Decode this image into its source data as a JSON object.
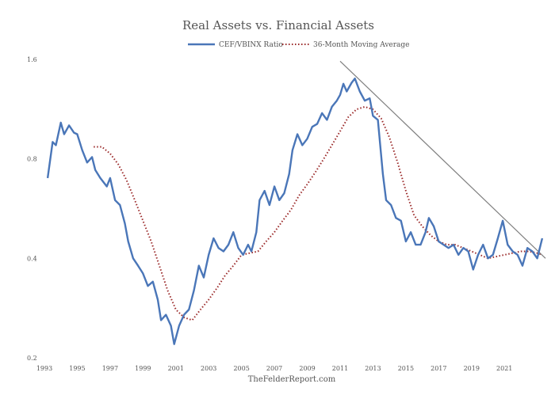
{
  "chart_data": {
    "type": "line",
    "title": "Real Assets vs. Financial Assets",
    "source": "TheFelderReport.com",
    "y_scale": "log",
    "ylim": [
      0.2,
      1.6
    ],
    "xlim": [
      1993,
      2023.5
    ],
    "y_ticks": [
      "0.2",
      "0.4",
      "0.8",
      "1.6"
    ],
    "y_tick_values": [
      0.2,
      0.4,
      0.8,
      1.6
    ],
    "x_ticks": [
      "1993",
      "1995",
      "1997",
      "1999",
      "2001",
      "2003",
      "2005",
      "2007",
      "2009",
      "2011",
      "2013",
      "2015",
      "2017",
      "2019",
      "2021"
    ],
    "x_tick_values": [
      1993,
      1995,
      1997,
      1999,
      2001,
      2003,
      2005,
      2007,
      2009,
      2011,
      2013,
      2015,
      2017,
      2019,
      2021
    ],
    "grid": false,
    "legend_position": "top-center",
    "colors": {
      "ratio": "#4a76b8",
      "moving_average": "#9b2a2a",
      "trendline": "#7f7f7f"
    },
    "series": [
      {
        "name": "CEF/VBINX Ratio",
        "style": "solid",
        "x": [
          1993.2,
          1993.5,
          1993.7,
          1994.0,
          1994.2,
          1994.5,
          1994.8,
          1995.0,
          1995.3,
          1995.6,
          1995.9,
          1996.1,
          1996.4,
          1996.8,
          1997.0,
          1997.3,
          1997.6,
          1997.9,
          1998.1,
          1998.4,
          1998.7,
          1999.0,
          1999.3,
          1999.6,
          1999.9,
          2000.1,
          2000.4,
          2000.7,
          2000.9,
          2001.2,
          2001.5,
          2001.8,
          2002.1,
          2002.4,
          2002.7,
          2003.0,
          2003.3,
          2003.6,
          2003.9,
          2004.2,
          2004.5,
          2004.8,
          2005.1,
          2005.4,
          2005.6,
          2005.9,
          2006.1,
          2006.4,
          2006.7,
          2007.0,
          2007.3,
          2007.6,
          2007.9,
          2008.1,
          2008.4,
          2008.7,
          2009.0,
          2009.3,
          2009.6,
          2009.9,
          2010.2,
          2010.5,
          2010.8,
          2011.0,
          2011.2,
          2011.4,
          2011.7,
          2011.9,
          2012.2,
          2012.5,
          2012.8,
          2013.0,
          2013.3,
          2013.6,
          2013.8,
          2014.1,
          2014.4,
          2014.7,
          2015.0,
          2015.3,
          2015.6,
          2015.9,
          2016.2,
          2016.4,
          2016.7,
          2017.0,
          2017.3,
          2017.6,
          2017.9,
          2018.2,
          2018.5,
          2018.8,
          2019.1,
          2019.4,
          2019.7,
          2020.0,
          2020.3,
          2020.6,
          2020.9,
          2021.2,
          2021.5,
          2021.8,
          2022.1,
          2022.4,
          2022.7,
          2023.0,
          2023.3
        ],
        "values": [
          0.7,
          0.9,
          0.88,
          1.03,
          0.95,
          1.01,
          0.96,
          0.95,
          0.85,
          0.78,
          0.81,
          0.74,
          0.7,
          0.66,
          0.7,
          0.6,
          0.58,
          0.51,
          0.45,
          0.4,
          0.38,
          0.36,
          0.33,
          0.34,
          0.3,
          0.26,
          0.27,
          0.25,
          0.22,
          0.25,
          0.27,
          0.28,
          0.32,
          0.38,
          0.35,
          0.41,
          0.46,
          0.43,
          0.42,
          0.44,
          0.48,
          0.43,
          0.41,
          0.44,
          0.42,
          0.48,
          0.6,
          0.64,
          0.58,
          0.66,
          0.6,
          0.63,
          0.72,
          0.85,
          0.95,
          0.88,
          0.92,
          1.0,
          1.02,
          1.1,
          1.05,
          1.15,
          1.2,
          1.25,
          1.35,
          1.28,
          1.36,
          1.4,
          1.28,
          1.2,
          1.22,
          1.08,
          1.05,
          0.72,
          0.6,
          0.58,
          0.53,
          0.52,
          0.45,
          0.48,
          0.44,
          0.44,
          0.48,
          0.53,
          0.5,
          0.45,
          0.44,
          0.43,
          0.44,
          0.41,
          0.43,
          0.42,
          0.37,
          0.41,
          0.44,
          0.4,
          0.41,
          0.46,
          0.52,
          0.44,
          0.42,
          0.41,
          0.38,
          0.43,
          0.42,
          0.4,
          0.46
        ]
      },
      {
        "name": "36-Month Moving Average",
        "style": "dotted",
        "x": [
          1996.0,
          1996.5,
          1997.0,
          1997.5,
          1998.0,
          1998.5,
          1999.0,
          1999.5,
          2000.0,
          2000.5,
          2001.0,
          2001.5,
          2002.0,
          2002.5,
          2003.0,
          2003.5,
          2004.0,
          2004.5,
          2005.0,
          2005.5,
          2006.0,
          2006.5,
          2007.0,
          2007.5,
          2008.0,
          2008.5,
          2009.0,
          2009.5,
          2010.0,
          2010.5,
          2011.0,
          2011.5,
          2012.0,
          2012.5,
          2013.0,
          2013.5,
          2014.0,
          2014.5,
          2015.0,
          2015.5,
          2016.0,
          2016.5,
          2017.0,
          2017.5,
          2018.0,
          2018.5,
          2019.0,
          2019.5,
          2020.0,
          2020.5,
          2021.0,
          2021.5,
          2022.0,
          2022.5,
          2023.0,
          2023.3
        ],
        "values": [
          0.87,
          0.87,
          0.83,
          0.77,
          0.69,
          0.6,
          0.52,
          0.45,
          0.38,
          0.32,
          0.28,
          0.265,
          0.26,
          0.28,
          0.3,
          0.325,
          0.355,
          0.38,
          0.41,
          0.415,
          0.42,
          0.45,
          0.48,
          0.52,
          0.56,
          0.62,
          0.67,
          0.73,
          0.8,
          0.88,
          0.97,
          1.07,
          1.13,
          1.15,
          1.13,
          1.06,
          0.93,
          0.78,
          0.64,
          0.54,
          0.5,
          0.47,
          0.45,
          0.44,
          0.44,
          0.43,
          0.42,
          0.41,
          0.4,
          0.405,
          0.41,
          0.415,
          0.42,
          0.42,
          0.415,
          0.41
        ]
      },
      {
        "name": "",
        "style": "trendline",
        "x": [
          2011.0,
          2023.5
        ],
        "values": [
          1.58,
          0.4
        ]
      }
    ]
  }
}
